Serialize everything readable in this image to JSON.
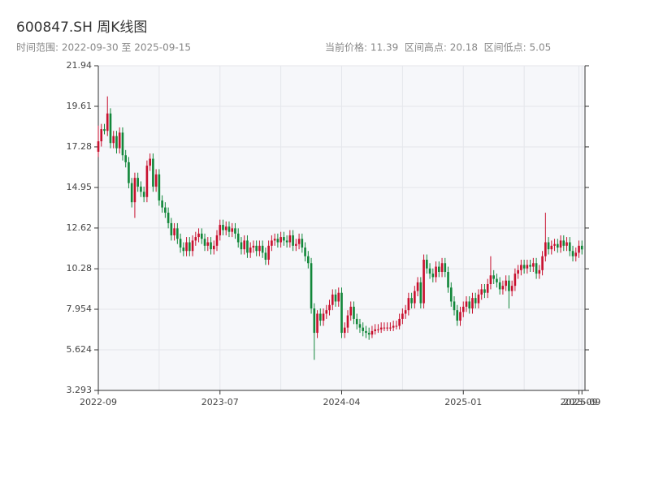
{
  "chart_data": {
    "type": "candlestick",
    "title": "600847.SH 周K线图",
    "subtitle": "时间范围: 2022-09-30 至 2025-09-15",
    "stats": "当前价格: 11.39  区间高点: 20.18  区间低点: 5.05",
    "up_color": "#c8102e",
    "down_color": "#12873a",
    "ylim": [
      3.293,
      21.94
    ],
    "yticks": [
      3.293,
      5.624,
      7.954,
      10.28,
      12.62,
      14.95,
      17.28,
      19.61,
      21.94
    ],
    "xlim": [
      0,
      160
    ],
    "xticks": [
      {
        "value": 0,
        "label": "2022-09"
      },
      {
        "value": 40,
        "label": "2023-07"
      },
      {
        "value": 80,
        "label": "2024-04"
      },
      {
        "value": 120,
        "label": "2025-01"
      },
      {
        "value": 158,
        "label": "2025-09"
      },
      {
        "value": 159,
        "label": "2025-09"
      }
    ],
    "xgrid": [
      20,
      60,
      100,
      140
    ],
    "grid": true,
    "open": [
      17.0,
      17.6,
      18.3,
      18.2,
      19.2,
      17.5,
      17.9,
      17.2,
      18.1,
      16.8,
      16.4,
      15.2,
      14.1,
      15.5,
      15.0,
      14.7,
      14.4,
      16.2,
      16.6,
      15.0,
      15.7,
      14.2,
      13.8,
      13.5,
      12.9,
      12.2,
      12.6,
      12.0,
      11.5,
      11.3,
      11.8,
      11.3,
      11.9,
      12.1,
      12.3,
      12.0,
      11.6,
      11.8,
      11.4,
      11.6,
      12.2,
      12.8,
      12.5,
      12.7,
      12.4,
      12.6,
      12.3,
      11.8,
      11.4,
      11.9,
      11.2,
      11.5,
      11.6,
      11.3,
      11.6,
      11.2,
      10.8,
      11.6,
      11.9,
      12.0,
      11.8,
      12.1,
      11.9,
      11.8,
      12.2,
      11.6,
      11.7,
      12.0,
      11.5,
      11.0,
      10.6,
      8.0,
      6.6,
      7.7,
      7.3,
      7.7,
      7.9,
      8.2,
      8.8,
      8.4,
      8.9,
      6.6,
      6.9,
      7.6,
      8.1,
      7.4,
      7.1,
      6.9,
      6.7,
      6.6,
      6.5,
      6.7,
      6.8,
      6.8,
      6.9,
      6.9,
      6.9,
      6.9,
      7.0,
      7.0,
      7.4,
      7.7,
      7.9,
      8.6,
      8.3,
      9.0,
      9.5,
      8.3,
      10.8,
      10.3,
      10.0,
      9.8,
      10.4,
      10.1,
      10.6,
      10.1,
      9.2,
      8.4,
      7.9,
      7.3,
      7.8,
      8.1,
      8.4,
      8.0,
      8.6,
      8.3,
      8.8,
      9.1,
      8.9,
      9.4,
      9.9,
      9.7,
      9.5,
      9.1,
      9.3,
      9.6,
      9.0,
      9.3,
      10.0,
      10.2,
      10.5,
      10.3,
      10.5,
      10.4,
      10.6,
      10.0,
      10.2,
      11.0,
      11.8,
      11.4,
      11.6,
      11.7,
      11.5,
      11.9,
      11.6,
      11.8,
      11.3,
      11.0,
      11.2,
      11.6
    ],
    "high": [
      18.5,
      18.6,
      18.6,
      20.18,
      19.5,
      18.2,
      18.2,
      18.4,
      18.4,
      17.1,
      16.7,
      15.5,
      15.8,
      15.8,
      15.3,
      15.0,
      16.5,
      16.9,
      16.9,
      16.0,
      16.0,
      14.5,
      14.1,
      13.8,
      13.2,
      12.9,
      12.9,
      12.3,
      11.8,
      12.1,
      12.1,
      12.2,
      12.4,
      12.6,
      12.6,
      12.3,
      12.1,
      12.1,
      11.9,
      12.5,
      13.1,
      13.1,
      13.0,
      13.0,
      12.9,
      12.9,
      12.6,
      12.1,
      12.2,
      12.2,
      11.8,
      11.9,
      11.9,
      11.9,
      11.9,
      11.5,
      11.9,
      12.2,
      12.3,
      12.3,
      12.4,
      12.4,
      12.2,
      12.5,
      12.5,
      12.0,
      12.3,
      12.3,
      11.8,
      11.3,
      10.9,
      8.3,
      7.9,
      8.0,
      8.0,
      8.2,
      8.5,
      9.1,
      9.1,
      9.2,
      9.2,
      7.2,
      7.9,
      8.4,
      8.4,
      7.7,
      7.4,
      7.2,
      7.0,
      6.9,
      7.0,
      7.1,
      7.1,
      7.2,
      7.2,
      7.2,
      7.2,
      7.3,
      7.3,
      7.7,
      8.0,
      8.2,
      8.9,
      8.9,
      9.3,
      9.8,
      9.8,
      11.1,
      11.1,
      10.6,
      10.3,
      10.7,
      10.7,
      10.9,
      10.9,
      10.4,
      9.5,
      8.7,
      8.2,
      8.1,
      8.4,
      8.7,
      8.7,
      8.9,
      8.9,
      9.1,
      9.4,
      9.4,
      9.7,
      11.0,
      10.2,
      10.0,
      9.8,
      9.6,
      9.9,
      9.9,
      9.6,
      10.3,
      10.5,
      10.8,
      10.8,
      10.8,
      10.8,
      10.9,
      10.9,
      10.5,
      11.3,
      13.5,
      12.1,
      11.9,
      12.0,
      12.0,
      12.2,
      12.2,
      12.1,
      12.1,
      11.6,
      11.5,
      11.9,
      11.9
    ],
    "low": [
      16.7,
      17.3,
      18.0,
      17.9,
      17.2,
      17.2,
      16.9,
      16.9,
      16.5,
      16.1,
      14.9,
      13.8,
      13.2,
      14.7,
      14.4,
      14.1,
      14.1,
      15.9,
      14.7,
      14.7,
      13.9,
      13.5,
      13.2,
      12.6,
      11.9,
      11.9,
      11.7,
      11.2,
      11.0,
      11.0,
      11.0,
      11.0,
      11.6,
      11.8,
      11.7,
      11.3,
      11.3,
      11.1,
      11.1,
      11.3,
      11.9,
      12.2,
      12.2,
      12.1,
      12.1,
      12.0,
      11.5,
      11.1,
      11.1,
      10.9,
      10.9,
      11.2,
      11.0,
      11.0,
      10.9,
      10.5,
      10.5,
      11.3,
      11.6,
      11.5,
      11.5,
      11.6,
      11.5,
      11.5,
      11.3,
      11.3,
      11.4,
      11.2,
      10.7,
      10.3,
      7.7,
      5.05,
      6.3,
      7.0,
      7.0,
      7.4,
      7.6,
      7.9,
      8.1,
      8.1,
      6.3,
      6.3,
      6.6,
      7.3,
      7.1,
      6.8,
      6.6,
      6.4,
      6.3,
      6.2,
      6.3,
      6.5,
      6.6,
      6.6,
      6.7,
      6.7,
      6.7,
      6.7,
      6.8,
      6.8,
      7.1,
      7.4,
      7.6,
      8.0,
      8.0,
      8.7,
      8.0,
      8.0,
      10.0,
      9.7,
      9.5,
      9.5,
      9.8,
      9.8,
      9.8,
      8.9,
      8.1,
      7.6,
      7.0,
      7.0,
      7.5,
      7.8,
      7.7,
      7.7,
      8.0,
      8.0,
      8.5,
      8.6,
      8.6,
      9.1,
      9.4,
      9.2,
      8.8,
      8.8,
      9.0,
      8.0,
      8.7,
      9.0,
      9.7,
      9.9,
      10.0,
      10.0,
      10.1,
      10.1,
      9.7,
      9.7,
      9.9,
      10.7,
      11.1,
      11.1,
      11.3,
      11.2,
      11.2,
      11.3,
      11.3,
      11.0,
      10.7,
      10.7,
      10.9,
      11.1
    ],
    "close": [
      17.6,
      18.3,
      18.2,
      19.2,
      17.5,
      17.9,
      17.2,
      18.1,
      16.8,
      16.4,
      15.2,
      14.1,
      15.5,
      15.0,
      14.7,
      14.4,
      16.2,
      16.6,
      15.0,
      15.7,
      14.2,
      13.8,
      13.5,
      12.9,
      12.2,
      12.6,
      12.0,
      11.5,
      11.3,
      11.8,
      11.3,
      11.9,
      12.1,
      12.3,
      12.0,
      11.6,
      11.8,
      11.4,
      11.6,
      12.2,
      12.8,
      12.5,
      12.7,
      12.4,
      12.6,
      12.3,
      11.8,
      11.4,
      11.9,
      11.2,
      11.5,
      11.6,
      11.3,
      11.6,
      11.2,
      10.8,
      11.6,
      11.9,
      12.0,
      11.8,
      12.1,
      11.9,
      11.8,
      12.2,
      11.6,
      11.7,
      12.0,
      11.5,
      11.0,
      10.6,
      8.0,
      6.6,
      7.7,
      7.3,
      7.7,
      7.9,
      8.2,
      8.8,
      8.4,
      8.9,
      6.6,
      6.9,
      7.6,
      8.1,
      7.4,
      7.1,
      6.9,
      6.7,
      6.6,
      6.5,
      6.7,
      6.8,
      6.8,
      6.9,
      6.9,
      6.9,
      6.9,
      7.0,
      7.0,
      7.4,
      7.7,
      7.9,
      8.6,
      8.3,
      9.0,
      9.5,
      8.3,
      10.8,
      10.3,
      10.0,
      9.8,
      10.4,
      10.1,
      10.6,
      10.1,
      9.2,
      8.4,
      7.9,
      7.3,
      7.8,
      8.1,
      8.4,
      8.0,
      8.6,
      8.3,
      8.8,
      9.1,
      8.9,
      9.4,
      9.9,
      9.7,
      9.5,
      9.1,
      9.3,
      9.6,
      9.0,
      9.3,
      10.0,
      10.2,
      10.5,
      10.3,
      10.5,
      10.4,
      10.6,
      10.0,
      10.2,
      11.0,
      11.8,
      11.4,
      11.6,
      11.7,
      11.5,
      11.9,
      11.6,
      11.8,
      11.3,
      11.0,
      11.2,
      11.6,
      11.39
    ]
  }
}
